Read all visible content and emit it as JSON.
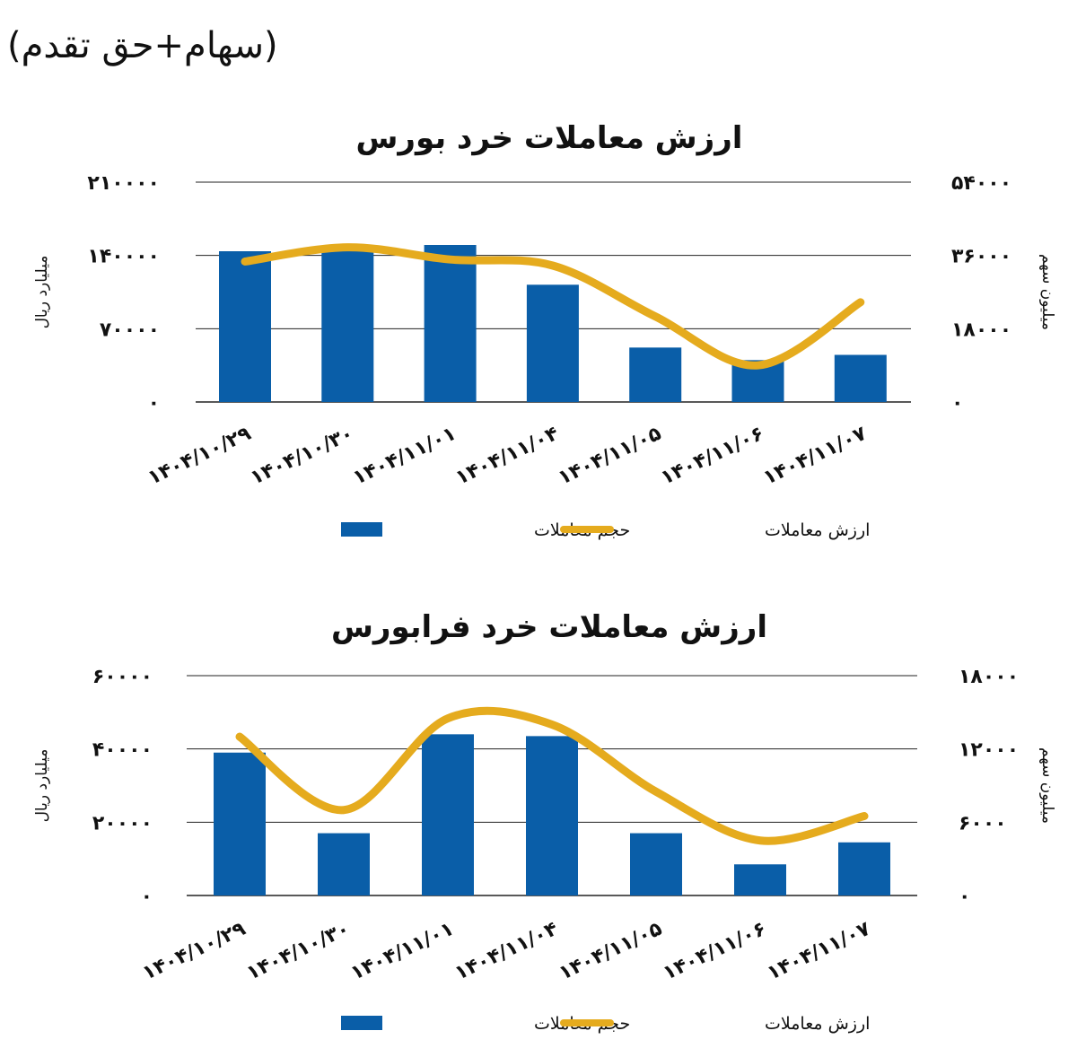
{
  "page": {
    "subtitle": "(سهام+حق تقدم)"
  },
  "colors": {
    "bar": "#0a5ea8",
    "line": "#e5ab1e",
    "grid": "#222222",
    "text": "#111111"
  },
  "chart_data": [
    {
      "type": "bar",
      "title": "ارزش معاملات خرد بورس",
      "categories": [
        "۱۴۰۴/۱۰/۲۹",
        "۱۴۰۴/۱۰/۳۰",
        "۱۴۰۴/۱۱/۰۱",
        "۱۴۰۴/۱۱/۰۴",
        "۱۴۰۴/۱۱/۰۵",
        "۱۴۰۴/۱۱/۰۶",
        "۱۴۰۴/۱۱/۰۷"
      ],
      "series": [
        {
          "name": "حجم معاملات",
          "type": "bar",
          "axis": "left",
          "values": [
            144000,
            144000,
            150000,
            112000,
            52000,
            40000,
            45000
          ]
        },
        {
          "name": "ارزش معاملات",
          "type": "line",
          "axis": "right",
          "values": [
            34500,
            38000,
            35000,
            33500,
            21000,
            9000,
            24500
          ]
        }
      ],
      "left_axis": {
        "label": "میلیارد ریال",
        "ylim": [
          0,
          210000
        ],
        "ticks": [
          "۰",
          "۷۰۰۰۰",
          "۱۴۰۰۰۰",
          "۲۱۰۰۰۰"
        ]
      },
      "right_axis": {
        "label": "میلیون سهم",
        "ylim": [
          0,
          54000
        ],
        "ticks": [
          "۰",
          "۱۸۰۰۰",
          "۳۶۰۰۰",
          "۵۴۰۰۰"
        ]
      },
      "grid": true,
      "legend": "bottom"
    },
    {
      "type": "bar",
      "title": "ارزش معاملات خرد فرابورس",
      "categories": [
        "۱۴۰۴/۱۰/۲۹",
        "۱۴۰۴/۱۰/۳۰",
        "۱۴۰۴/۱۱/۰۱",
        "۱۴۰۴/۱۱/۰۴",
        "۱۴۰۴/۱۱/۰۵",
        "۱۴۰۴/۱۱/۰۶",
        "۱۴۰۴/۱۱/۰۷"
      ],
      "series": [
        {
          "name": "حجم معاملات",
          "type": "bar",
          "axis": "left",
          "values": [
            39000,
            17000,
            44000,
            43500,
            17000,
            8500,
            14500
          ]
        },
        {
          "name": "ارزش معاملات",
          "type": "line",
          "axis": "right",
          "values": [
            13000,
            7000,
            14500,
            14000,
            8500,
            4500,
            6500
          ]
        }
      ],
      "left_axis": {
        "label": "میلیارد ریال",
        "ylim": [
          0,
          60000
        ],
        "ticks": [
          "۰",
          "۲۰۰۰۰",
          "۴۰۰۰۰",
          "۶۰۰۰۰"
        ]
      },
      "right_axis": {
        "label": "میلیون سهم",
        "ylim": [
          0,
          18000
        ],
        "ticks": [
          "۰",
          "۶۰۰۰",
          "۱۲۰۰۰",
          "۱۸۰۰۰"
        ]
      },
      "grid": true,
      "legend": "bottom"
    }
  ]
}
